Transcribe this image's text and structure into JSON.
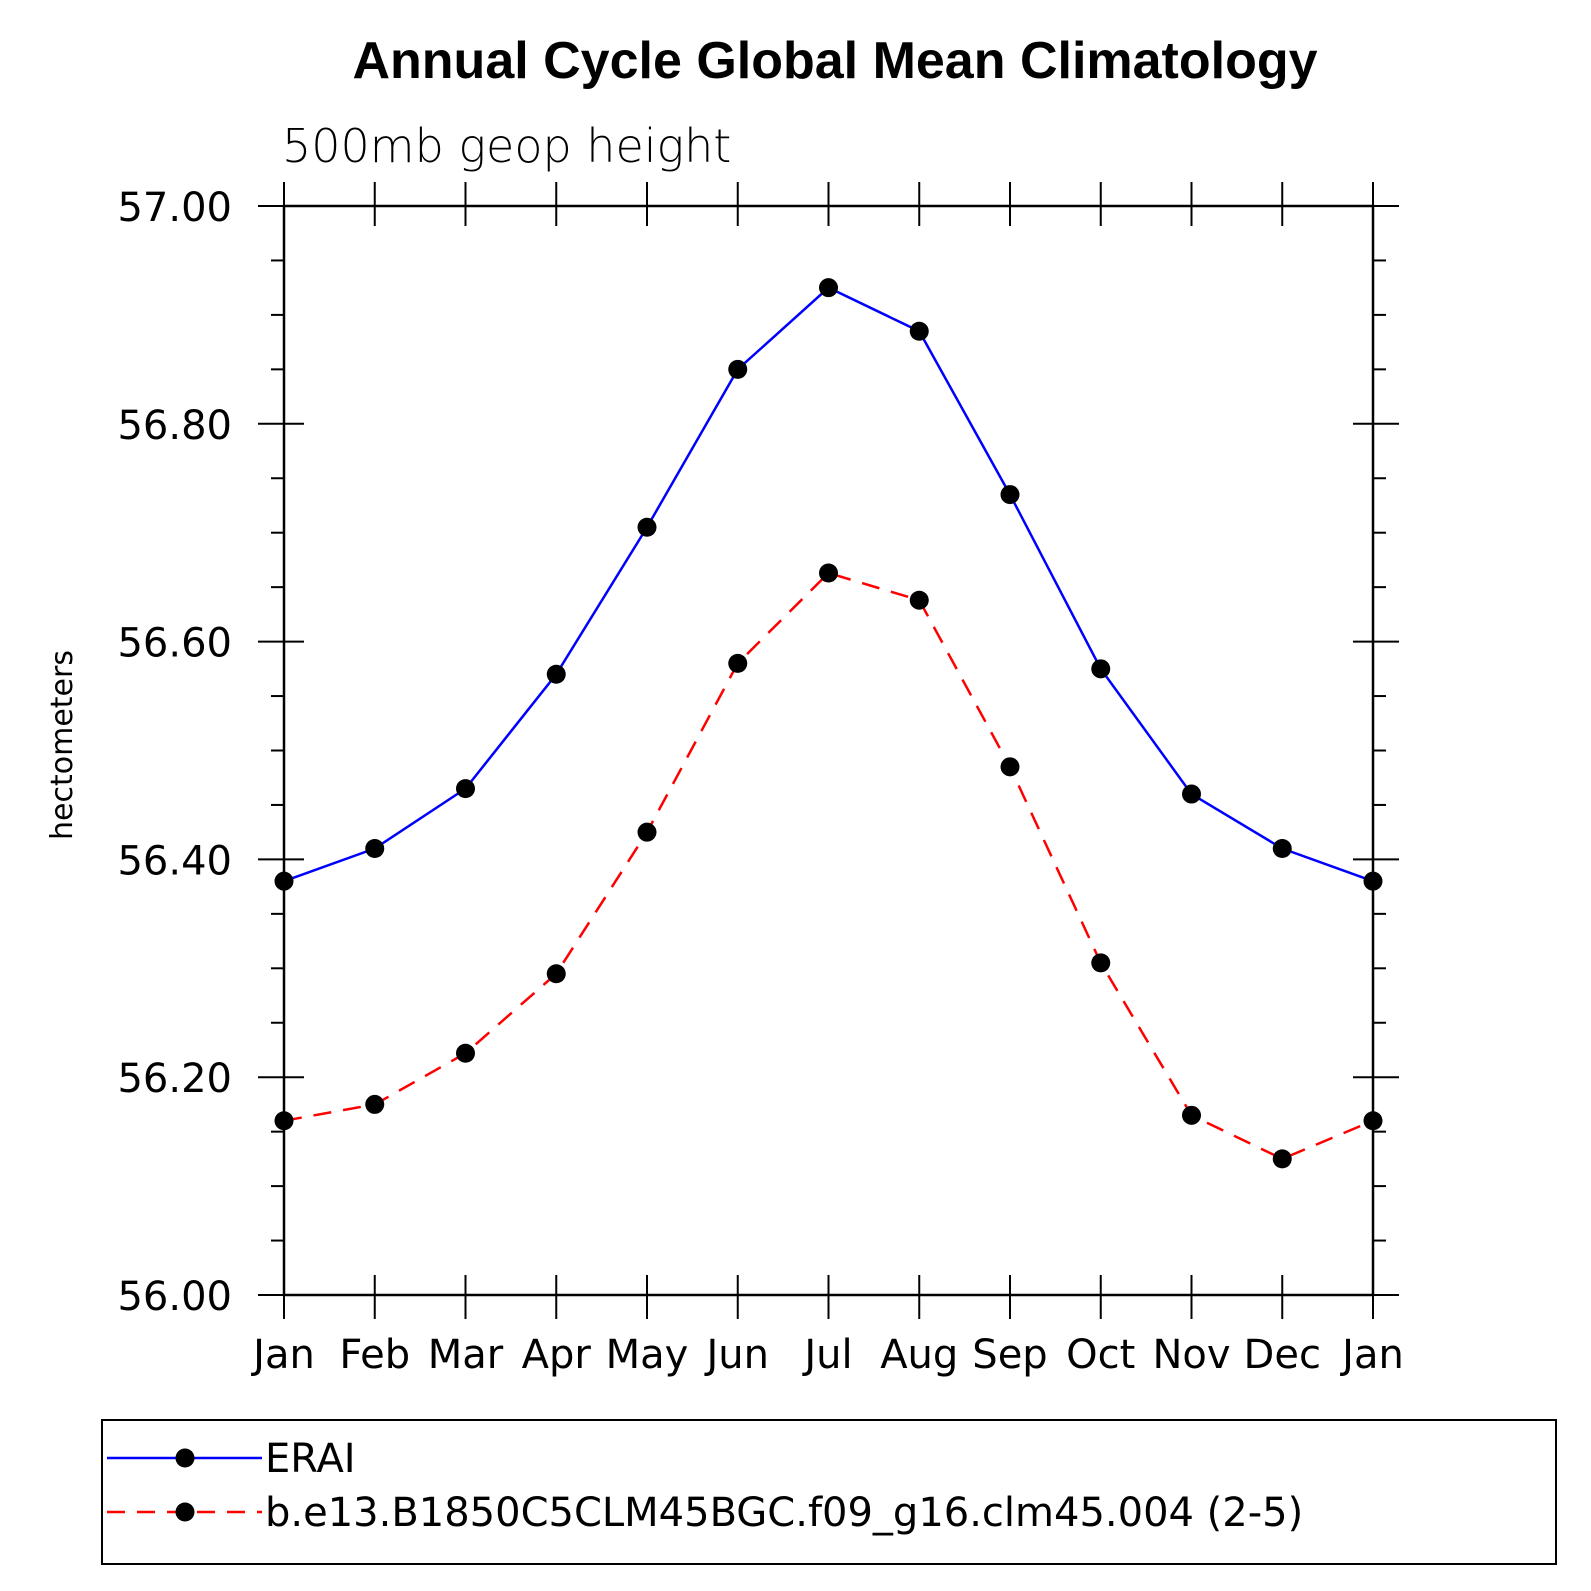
{
  "chart_data": {
    "type": "line",
    "title": "Annual Cycle Global Mean Climatology",
    "subtitle": "500mb geop height",
    "ylabel": "hectometers",
    "xlabel": "",
    "ylim": [
      56.0,
      57.0
    ],
    "yticks": [
      "56.00",
      "56.20",
      "56.40",
      "56.60",
      "56.80",
      "57.00"
    ],
    "categories": [
      "Jan",
      "Feb",
      "Mar",
      "Apr",
      "May",
      "Jun",
      "Jul",
      "Aug",
      "Sep",
      "Oct",
      "Nov",
      "Dec",
      "Jan"
    ],
    "grid": false,
    "legend_position": "bottom",
    "series": [
      {
        "name": "ERAI",
        "color": "#0000ff",
        "line_style": "solid",
        "marker": "filled-circle",
        "values": [
          56.38,
          56.41,
          56.465,
          56.57,
          56.705,
          56.85,
          56.925,
          56.885,
          56.735,
          56.575,
          56.46,
          56.41,
          56.38
        ]
      },
      {
        "name": "b.e13.B1850C5CLM45BGC.f09_g16.clm45.004 (2-5)",
        "color": "#ff0000",
        "line_style": "dashed",
        "marker": "filled-circle",
        "values": [
          56.16,
          56.175,
          56.222,
          56.295,
          56.425,
          56.58,
          56.663,
          56.638,
          56.485,
          56.305,
          56.165,
          56.125,
          56.16
        ]
      }
    ]
  }
}
